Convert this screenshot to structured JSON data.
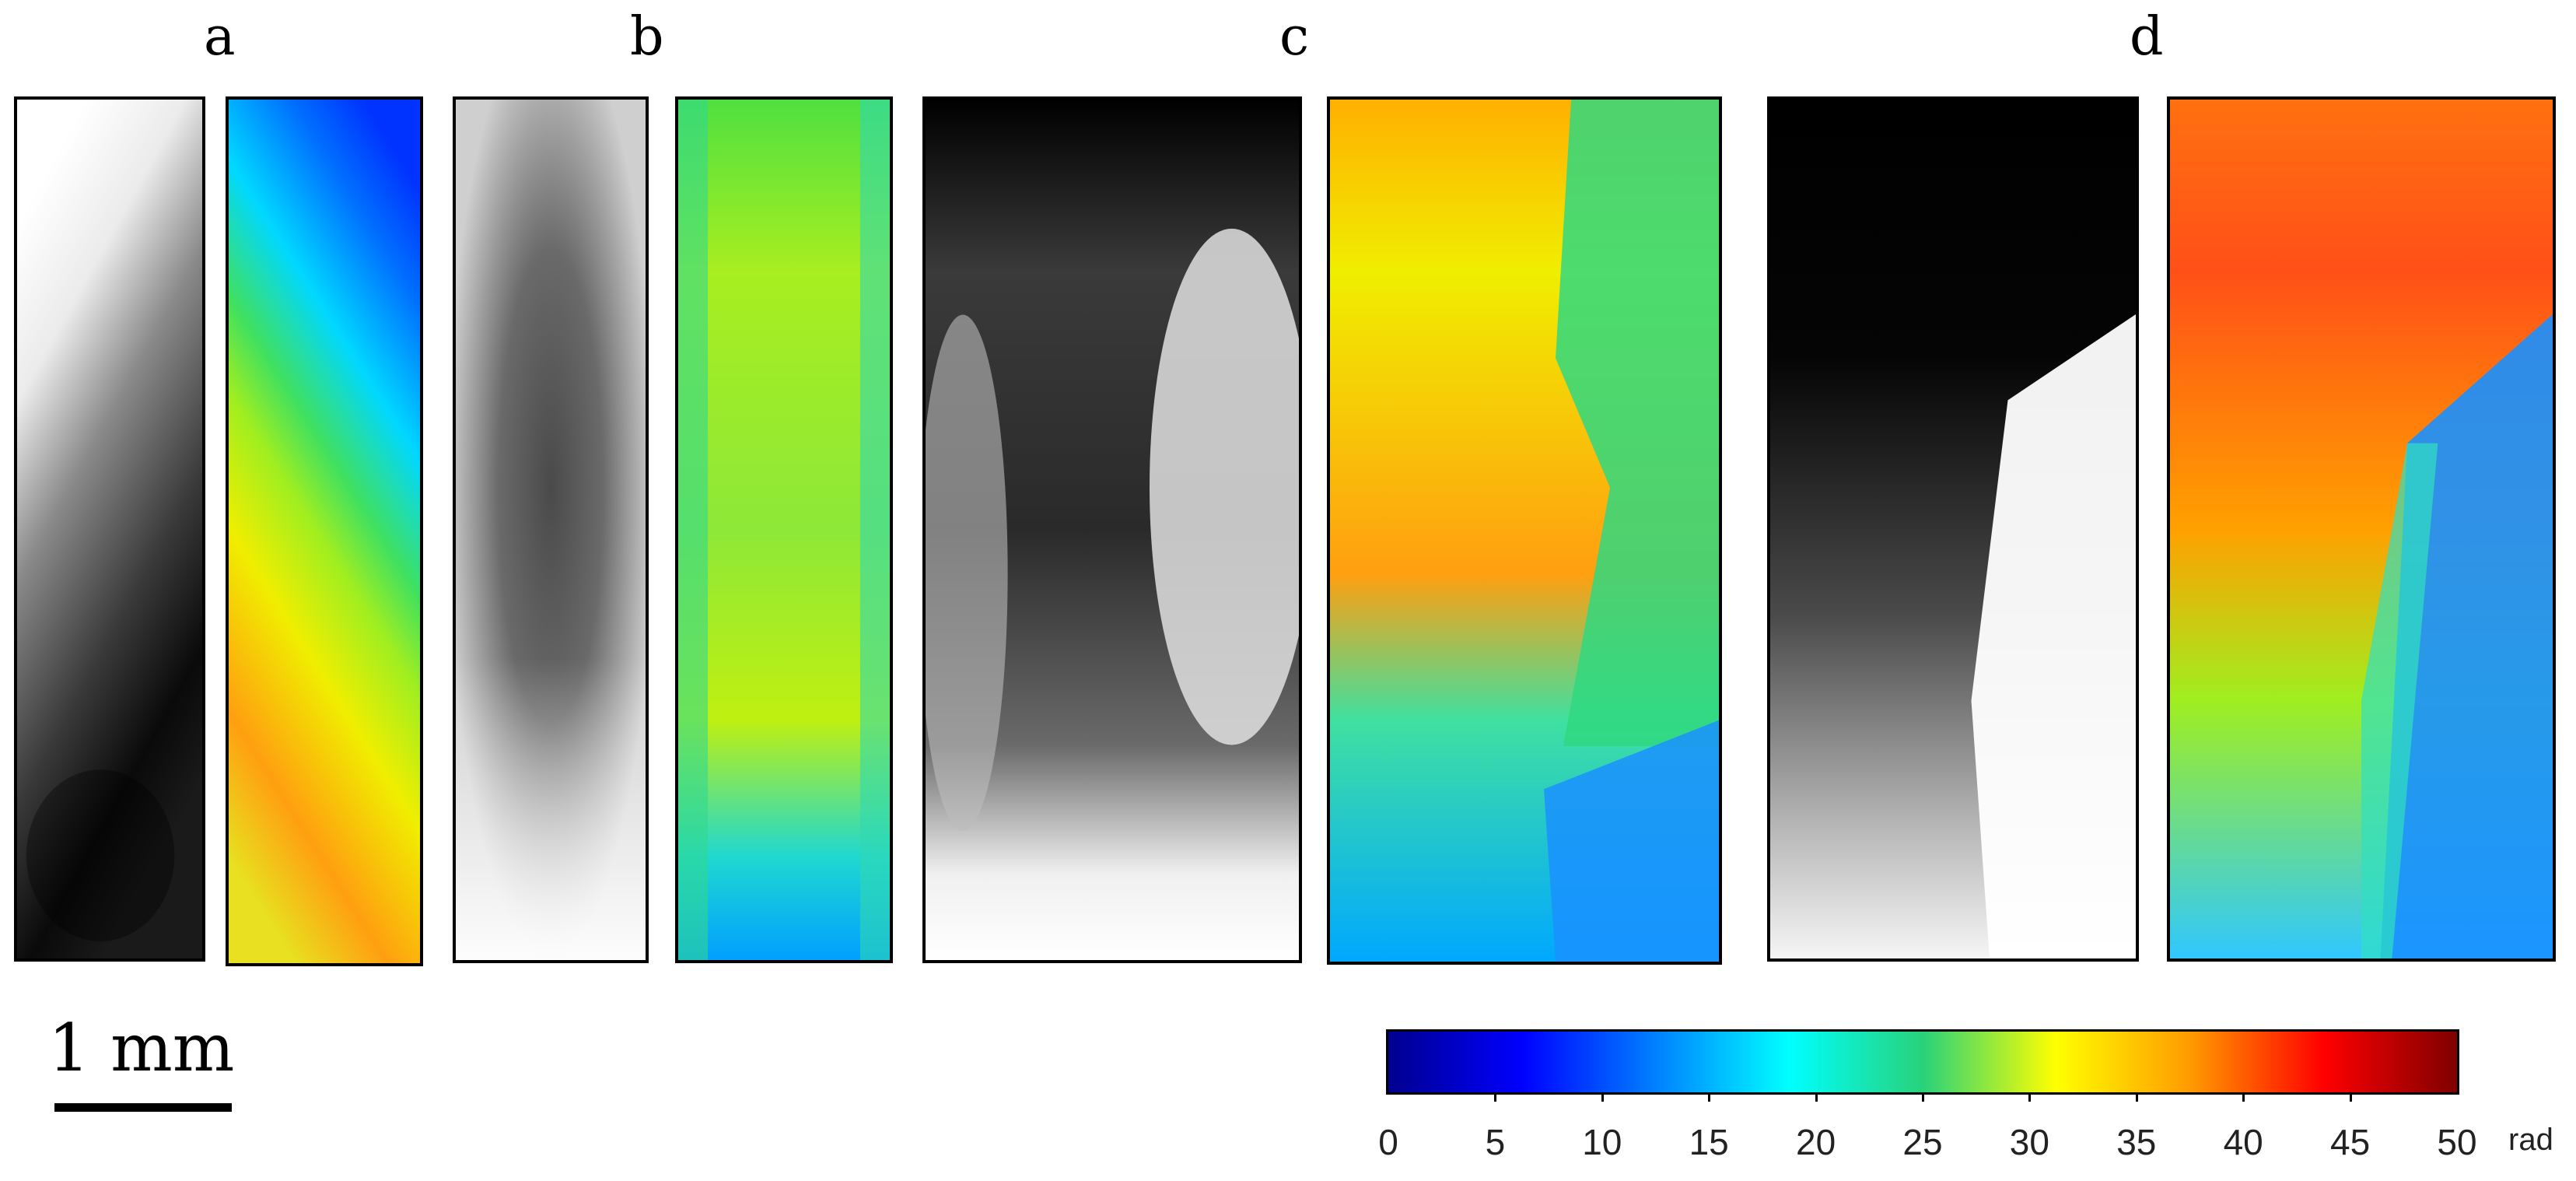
{
  "panels": [
    {
      "label": "a"
    },
    {
      "label": "b"
    },
    {
      "label": "c"
    },
    {
      "label": "d"
    }
  ],
  "scale_bar": {
    "label": "1 mm"
  },
  "colorbar": {
    "colors": [
      "#00008f",
      "#0000ff",
      "#0080ff",
      "#00ffff",
      "#28d27a",
      "#ffff00",
      "#ff9b00",
      "#ff0000",
      "#800000"
    ],
    "ticks": [
      "0",
      "5",
      "10",
      "15",
      "20",
      "25",
      "30",
      "35",
      "40",
      "45",
      "50"
    ],
    "unit": "rad",
    "range": [
      0,
      50
    ]
  }
}
